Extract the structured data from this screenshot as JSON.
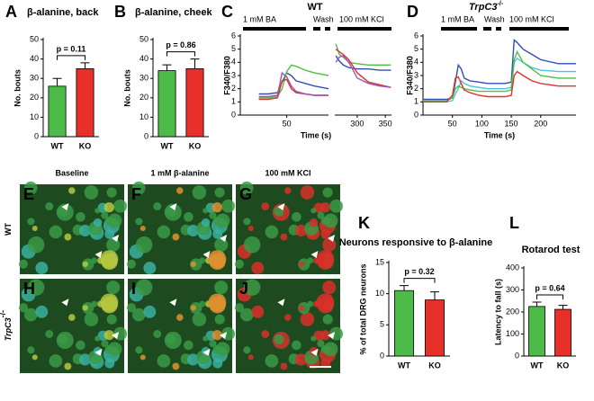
{
  "chart_data": [
    {
      "type": "bar",
      "panel_label": "A",
      "title": "β-alanine, back",
      "y_label": "No. bouts",
      "categories": [
        "WT",
        "KO"
      ],
      "values": [
        26,
        35
      ],
      "errors": [
        4,
        3
      ],
      "colors": [
        "#4cbb47",
        "#e8302a"
      ],
      "ylim": [
        0,
        50
      ],
      "yticks": [
        0,
        10,
        20,
        30,
        40,
        50
      ],
      "annotation": "p = 0.11"
    },
    {
      "type": "bar",
      "panel_label": "B",
      "title": "β-alanine, cheek",
      "y_label": "No. bouts",
      "categories": [
        "WT",
        "KO"
      ],
      "values": [
        34,
        35
      ],
      "errors": [
        3,
        5
      ],
      "colors": [
        "#4cbb47",
        "#e8302a"
      ],
      "ylim": [
        0,
        50
      ],
      "yticks": [
        0,
        10,
        20,
        30,
        40,
        50
      ],
      "annotation": "p = 0.86"
    },
    {
      "type": "line",
      "panel_label": "C",
      "title": "WT",
      "y_label": "F340/F380",
      "x_label": "Time (s)",
      "annotations": [
        "1 mM BA",
        "Wash",
        "100 mM KCl"
      ],
      "x": [
        20,
        30,
        40,
        45,
        50,
        55,
        60,
        70,
        80,
        95,
        150,
        262,
        268,
        275,
        285,
        300,
        320,
        340,
        360
      ],
      "xlim": [
        0,
        361
      ],
      "xbreak": [
        95,
        260
      ],
      "xticks": [
        50,
        300,
        350
      ],
      "ylim": [
        0,
        6
      ],
      "yticks": [
        0,
        1,
        2,
        3,
        4,
        5,
        6
      ],
      "series": [
        {
          "color": "#3050b0",
          "values": [
            1.6,
            1.6,
            1.7,
            2.5,
            3.2,
            3.0,
            2.6,
            2.4,
            2.2,
            2.0,
            null,
            4.5,
            4.1,
            3.8,
            3.6,
            3.5,
            3.5,
            3.4,
            3.4
          ]
        },
        {
          "color": "#50c040",
          "values": [
            1.3,
            1.3,
            1.4,
            2.0,
            3.3,
            3.8,
            3.7,
            3.4,
            3.2,
            3.0,
            null,
            5.4,
            4.6,
            4.4,
            4.0,
            3.9,
            3.8,
            3.8,
            3.8
          ]
        },
        {
          "color": "#e03030",
          "values": [
            1.2,
            1.2,
            1.3,
            2.6,
            2.7,
            2.0,
            1.7,
            1.6,
            1.5,
            1.5,
            null,
            5.0,
            4.8,
            4.6,
            4.2,
            3.2,
            2.5,
            2.3,
            2.1
          ]
        },
        {
          "color": "#9a55b5",
          "values": [
            1.4,
            1.4,
            1.5,
            3.2,
            2.9,
            2.2,
            1.8,
            1.6,
            1.5,
            1.5,
            null,
            4.0,
            4.4,
            4.5,
            4.0,
            2.8,
            2.4,
            2.2,
            2.1
          ]
        }
      ]
    },
    {
      "type": "line",
      "panel_label": "D",
      "title": "TrpC3",
      "title_superscript": "-/-",
      "y_label": "F340/F380",
      "x_label": "Time (s)",
      "annotations": [
        "1 mM BA",
        "Wash",
        "100 mM KCl"
      ],
      "x": [
        0,
        20,
        40,
        50,
        55,
        60,
        65,
        70,
        80,
        95,
        110,
        125,
        140,
        150,
        155,
        160,
        170,
        185,
        200,
        230,
        260
      ],
      "xlim": [
        0,
        260
      ],
      "xticks": [
        50,
        100,
        150,
        200
      ],
      "ylim": [
        0,
        6
      ],
      "yticks": [
        0,
        1,
        2,
        3,
        4,
        5,
        6
      ],
      "series": [
        {
          "color": "#3050b0",
          "values": [
            1.2,
            1.2,
            1.2,
            1.3,
            2.5,
            3.8,
            3.5,
            2.8,
            2.6,
            2.5,
            2.4,
            2.4,
            2.4,
            2.5,
            5.7,
            5.5,
            5.0,
            4.6,
            4.2,
            3.9,
            3.9
          ]
        },
        {
          "color": "#50c0e0",
          "values": [
            1.0,
            1.0,
            1.0,
            1.1,
            1.6,
            2.0,
            2.6,
            2.4,
            2.2,
            2.1,
            2.0,
            2.0,
            2.0,
            2.1,
            4.0,
            4.3,
            4.0,
            3.6,
            3.4,
            3.3,
            3.3
          ]
        },
        {
          "color": "#50c040",
          "values": [
            1.1,
            1.1,
            1.1,
            1.3,
            2.0,
            2.2,
            2.1,
            2.0,
            1.9,
            1.8,
            1.8,
            1.8,
            1.8,
            1.9,
            4.2,
            4.8,
            4.0,
            3.5,
            3.0,
            2.8,
            2.8
          ]
        },
        {
          "color": "#e03030",
          "values": [
            1.0,
            1.0,
            1.0,
            1.5,
            2.8,
            2.9,
            2.4,
            1.9,
            1.7,
            1.5,
            1.4,
            1.4,
            1.4,
            1.5,
            3.0,
            3.3,
            3.0,
            2.6,
            2.4,
            2.2,
            2.2
          ]
        }
      ]
    },
    {
      "type": "bar",
      "panel_label": "K",
      "title": "Neurons responsive to β-alanine",
      "y_label": "% of total DRG neurons",
      "categories": [
        "WT",
        "KO"
      ],
      "values": [
        10.5,
        9
      ],
      "errors": [
        0.8,
        1.3
      ],
      "colors": [
        "#4cbb47",
        "#e8302a"
      ],
      "ylim": [
        0,
        15
      ],
      "yticks": [
        0,
        5,
        10,
        15
      ],
      "annotation": "p = 0.32"
    },
    {
      "type": "bar",
      "panel_label": "L",
      "title": "Rotarod test",
      "y_label": "Latency to fall (s)",
      "categories": [
        "WT",
        "KO"
      ],
      "values": [
        225,
        212
      ],
      "errors": [
        20,
        18
      ],
      "colors": [
        "#4cbb47",
        "#e8302a"
      ],
      "ylim": [
        0,
        400
      ],
      "yticks": [
        0,
        100,
        200,
        300,
        400
      ],
      "annotation": "p = 0.64"
    }
  ],
  "images": {
    "column_headers": [
      "Baseline",
      "1 mM β-alanine",
      "100 mM KCl"
    ],
    "row_labels": [
      {
        "text": "WT"
      },
      {
        "text": "TrpC3",
        "superscript": "-/-"
      }
    ],
    "panel_labels": [
      "E",
      "F",
      "G",
      "H",
      "I",
      "J"
    ]
  }
}
